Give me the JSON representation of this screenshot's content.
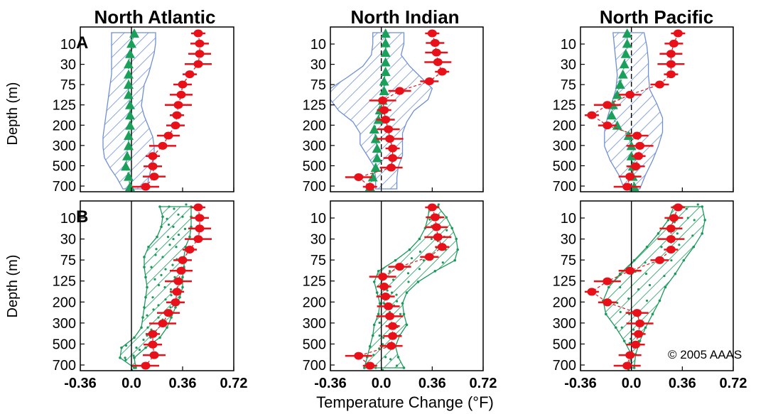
{
  "chart_data": {
    "type": "scatter",
    "columns": [
      "North Atlantic",
      "North Indian",
      "North Pacific"
    ],
    "rows": [
      "A",
      "B"
    ],
    "ylabel": "Depth (m)",
    "xlabel": "Temperature Change (°F)",
    "x_ticks": [
      "-0.36",
      "0.0",
      "0.36",
      "0.72"
    ],
    "x_tick_values": [
      -0.36,
      0,
      0.36,
      0.72
    ],
    "xlim": [
      -0.36,
      0.72
    ],
    "depth_labels": [
      "10",
      "30",
      "75",
      "125",
      "200",
      "300",
      "500",
      "700"
    ],
    "copyright": "© 2005 AAAS",
    "colors": {
      "observed": "#e8111a",
      "model": "#1aa05a",
      "shade_a": "#6f8fd6",
      "shade_b": "#1a9a5a"
    },
    "panels": [
      {
        "row": "A",
        "column": "North Atlantic",
        "observed": [
          0.47,
          0.48,
          0.48,
          0.47,
          0.41,
          0.36,
          0.35,
          0.33,
          0.32,
          0.31,
          0.26,
          0.22,
          0.15,
          0.15,
          0.16,
          0.1
        ],
        "model": [
          0.02,
          0.0,
          -0.01,
          -0.02,
          -0.02,
          -0.02,
          -0.02,
          -0.01,
          -0.01,
          -0.01,
          -0.02,
          -0.02,
          -0.03,
          -0.04,
          -0.02,
          -0.01
        ],
        "envelope_left": [
          -0.14,
          -0.14,
          -0.14,
          -0.14,
          -0.14,
          -0.15,
          -0.16,
          -0.17,
          -0.18,
          -0.19,
          -0.2,
          -0.2,
          -0.19,
          -0.15,
          -0.1,
          -0.06
        ],
        "envelope_right": [
          0.17,
          0.17,
          0.16,
          0.14,
          0.12,
          0.09,
          0.08,
          0.07,
          0.09,
          0.12,
          0.15,
          0.16,
          0.16,
          0.14,
          0.12,
          0.11
        ]
      },
      {
        "row": "A",
        "column": "North Indian",
        "observed": [
          0.36,
          0.38,
          0.39,
          0.4,
          0.43,
          0.34,
          0.13,
          0.01,
          0.02,
          0.03,
          0.05,
          0.06,
          0.08,
          0.08,
          0.07,
          -0.16,
          -0.08
        ],
        "model": [
          0.03,
          0.03,
          0.03,
          0.03,
          0.03,
          0.02,
          0.02,
          0.01,
          -0.01,
          -0.02,
          -0.05,
          -0.04,
          -0.03,
          -0.03,
          -0.04,
          -0.06,
          -0.08
        ],
        "envelope_left": [
          -0.06,
          -0.06,
          -0.07,
          -0.13,
          -0.24,
          -0.36,
          -0.36,
          -0.3,
          -0.2,
          -0.15,
          -0.15,
          -0.1,
          -0.05,
          -0.04,
          -0.04
        ],
        "envelope_right": [
          0.16,
          0.16,
          0.14,
          0.2,
          0.28,
          0.36,
          0.33,
          0.23,
          0.18,
          0.15,
          0.15,
          0.15,
          0.12,
          0.11,
          0.11
        ]
      },
      {
        "row": "A",
        "column": "North Pacific",
        "observed": [
          0.33,
          0.3,
          0.28,
          0.28,
          0.28,
          0.2,
          -0.01,
          -0.17,
          -0.28,
          -0.17,
          0.04,
          0.06,
          0.05,
          0.03,
          -0.01,
          -0.03
        ],
        "model": [
          -0.03,
          -0.03,
          -0.04,
          -0.05,
          -0.06,
          -0.08,
          -0.1,
          -0.13,
          -0.14,
          -0.1,
          -0.02,
          0.0,
          0.0,
          0.01,
          0.01,
          0.02
        ],
        "envelope_left": [
          -0.13,
          -0.12,
          -0.11,
          -0.1,
          -0.11,
          -0.14,
          -0.17,
          -0.19,
          -0.19,
          -0.15,
          -0.09,
          -0.05
        ],
        "envelope_right": [
          0.09,
          0.11,
          0.12,
          0.12,
          0.13,
          0.18,
          0.22,
          0.22,
          0.19,
          0.15,
          0.1,
          0.06
        ]
      },
      {
        "row": "B",
        "column": "North Atlantic",
        "observed": [
          0.47,
          0.48,
          0.48,
          0.47,
          0.41,
          0.36,
          0.35,
          0.33,
          0.32,
          0.31,
          0.26,
          0.22,
          0.15,
          0.15,
          0.16,
          0.1
        ],
        "envelope_left": [
          0.2,
          0.22,
          0.21,
          0.18,
          0.12,
          0.09,
          0.09,
          0.1,
          0.11,
          0.1,
          0.09,
          0.08,
          0.07,
          0.02,
          -0.07,
          -0.08,
          0.02
        ],
        "envelope_right": [
          0.42,
          0.42,
          0.42,
          0.41,
          0.38,
          0.37,
          0.37,
          0.36,
          0.36,
          0.34,
          0.31,
          0.28,
          0.25,
          0.2,
          0.1,
          0.02,
          0.03
        ]
      },
      {
        "row": "B",
        "column": "North Indian",
        "observed": [
          0.36,
          0.38,
          0.39,
          0.4,
          0.43,
          0.34,
          0.13,
          0.01,
          0.02,
          0.03,
          0.05,
          0.06,
          0.08,
          0.08,
          0.07,
          -0.16,
          -0.08
        ],
        "envelope_left": [
          0.34,
          0.33,
          0.31,
          0.27,
          0.2,
          0.1,
          -0.02,
          -0.05,
          -0.03,
          -0.01,
          -0.02,
          -0.05,
          -0.06,
          -0.08,
          -0.1,
          -0.12
        ],
        "envelope_right": [
          0.4,
          0.46,
          0.5,
          0.53,
          0.54,
          0.52,
          0.38,
          0.26,
          0.18,
          0.15,
          0.16,
          0.18,
          0.13,
          0.1,
          0.12,
          0.16
        ]
      },
      {
        "row": "B",
        "column": "North Pacific",
        "observed": [
          0.33,
          0.3,
          0.28,
          0.28,
          0.28,
          0.2,
          -0.01,
          -0.17,
          -0.28,
          -0.17,
          0.04,
          0.06,
          0.05,
          0.03,
          -0.01,
          -0.03
        ],
        "envelope_left": [
          0.3,
          0.26,
          0.19,
          0.11,
          0.02,
          -0.08,
          -0.16,
          -0.2,
          -0.18,
          -0.11,
          -0.05,
          0.0,
          -0.02
        ],
        "envelope_right": [
          0.5,
          0.52,
          0.5,
          0.44,
          0.37,
          0.31,
          0.24,
          0.2,
          0.15,
          0.1,
          0.06,
          0.03,
          0.02
        ]
      }
    ]
  }
}
